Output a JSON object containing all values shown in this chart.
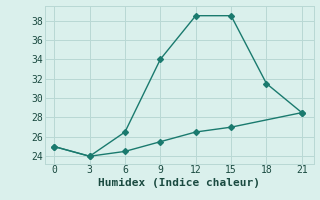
{
  "line1_x": [
    0,
    3,
    6,
    9,
    12,
    15,
    18,
    21
  ],
  "line1_y": [
    25,
    24,
    26.5,
    34,
    38.5,
    38.5,
    31.5,
    28.5
  ],
  "line2_x": [
    0,
    3,
    6,
    9,
    12,
    15,
    21
  ],
  "line2_y": [
    25,
    24,
    24.5,
    25.5,
    26.5,
    27,
    28.5
  ],
  "line_color": "#1a7a6e",
  "bg_color": "#daf0ec",
  "grid_color": "#b8d8d4",
  "xlabel": "Humidex (Indice chaleur)",
  "xlim": [
    -0.8,
    22
  ],
  "ylim": [
    23.2,
    39.5
  ],
  "xticks": [
    0,
    3,
    6,
    9,
    12,
    15,
    18,
    21
  ],
  "yticks": [
    24,
    26,
    28,
    30,
    32,
    34,
    36,
    38
  ],
  "marker": "D",
  "marker_size": 3,
  "linewidth": 1.0,
  "xlabel_fontsize": 8,
  "tick_fontsize": 7
}
